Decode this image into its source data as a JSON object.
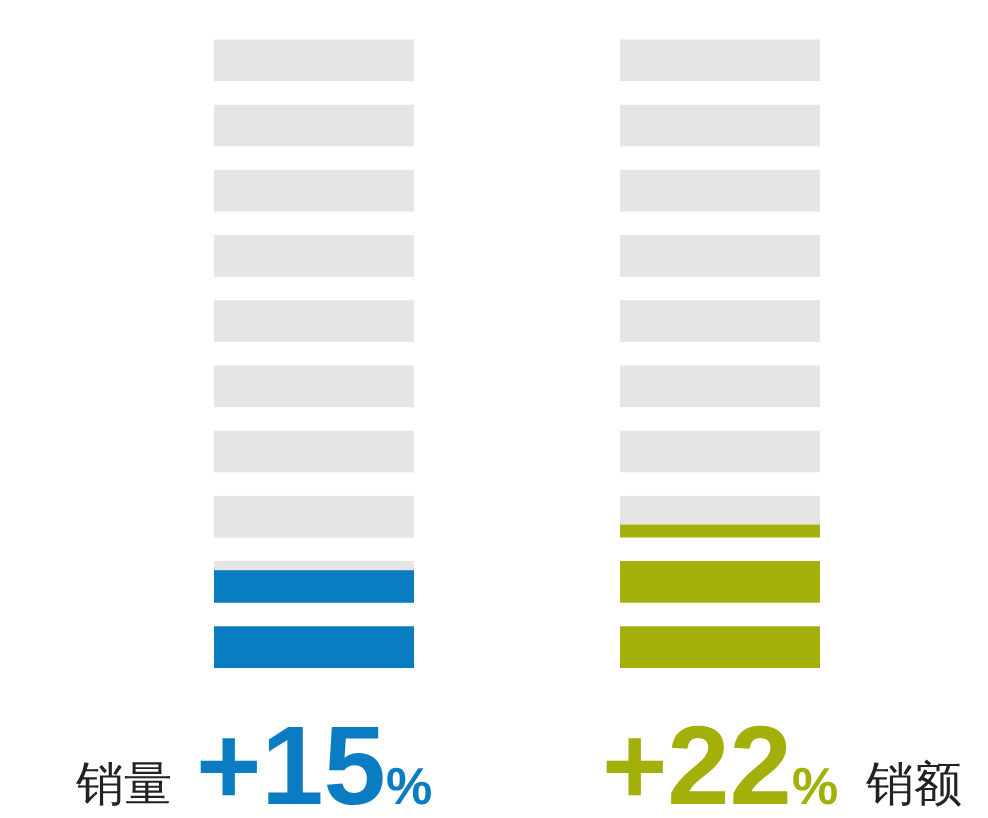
{
  "chart_data": {
    "type": "bar",
    "categories": [
      "销量",
      "销额"
    ],
    "values": [
      15,
      22
    ],
    "colors": [
      "#0a7dc2",
      "#a3b00a"
    ],
    "value_labels": [
      "+15%",
      "+22%"
    ]
  }
}
